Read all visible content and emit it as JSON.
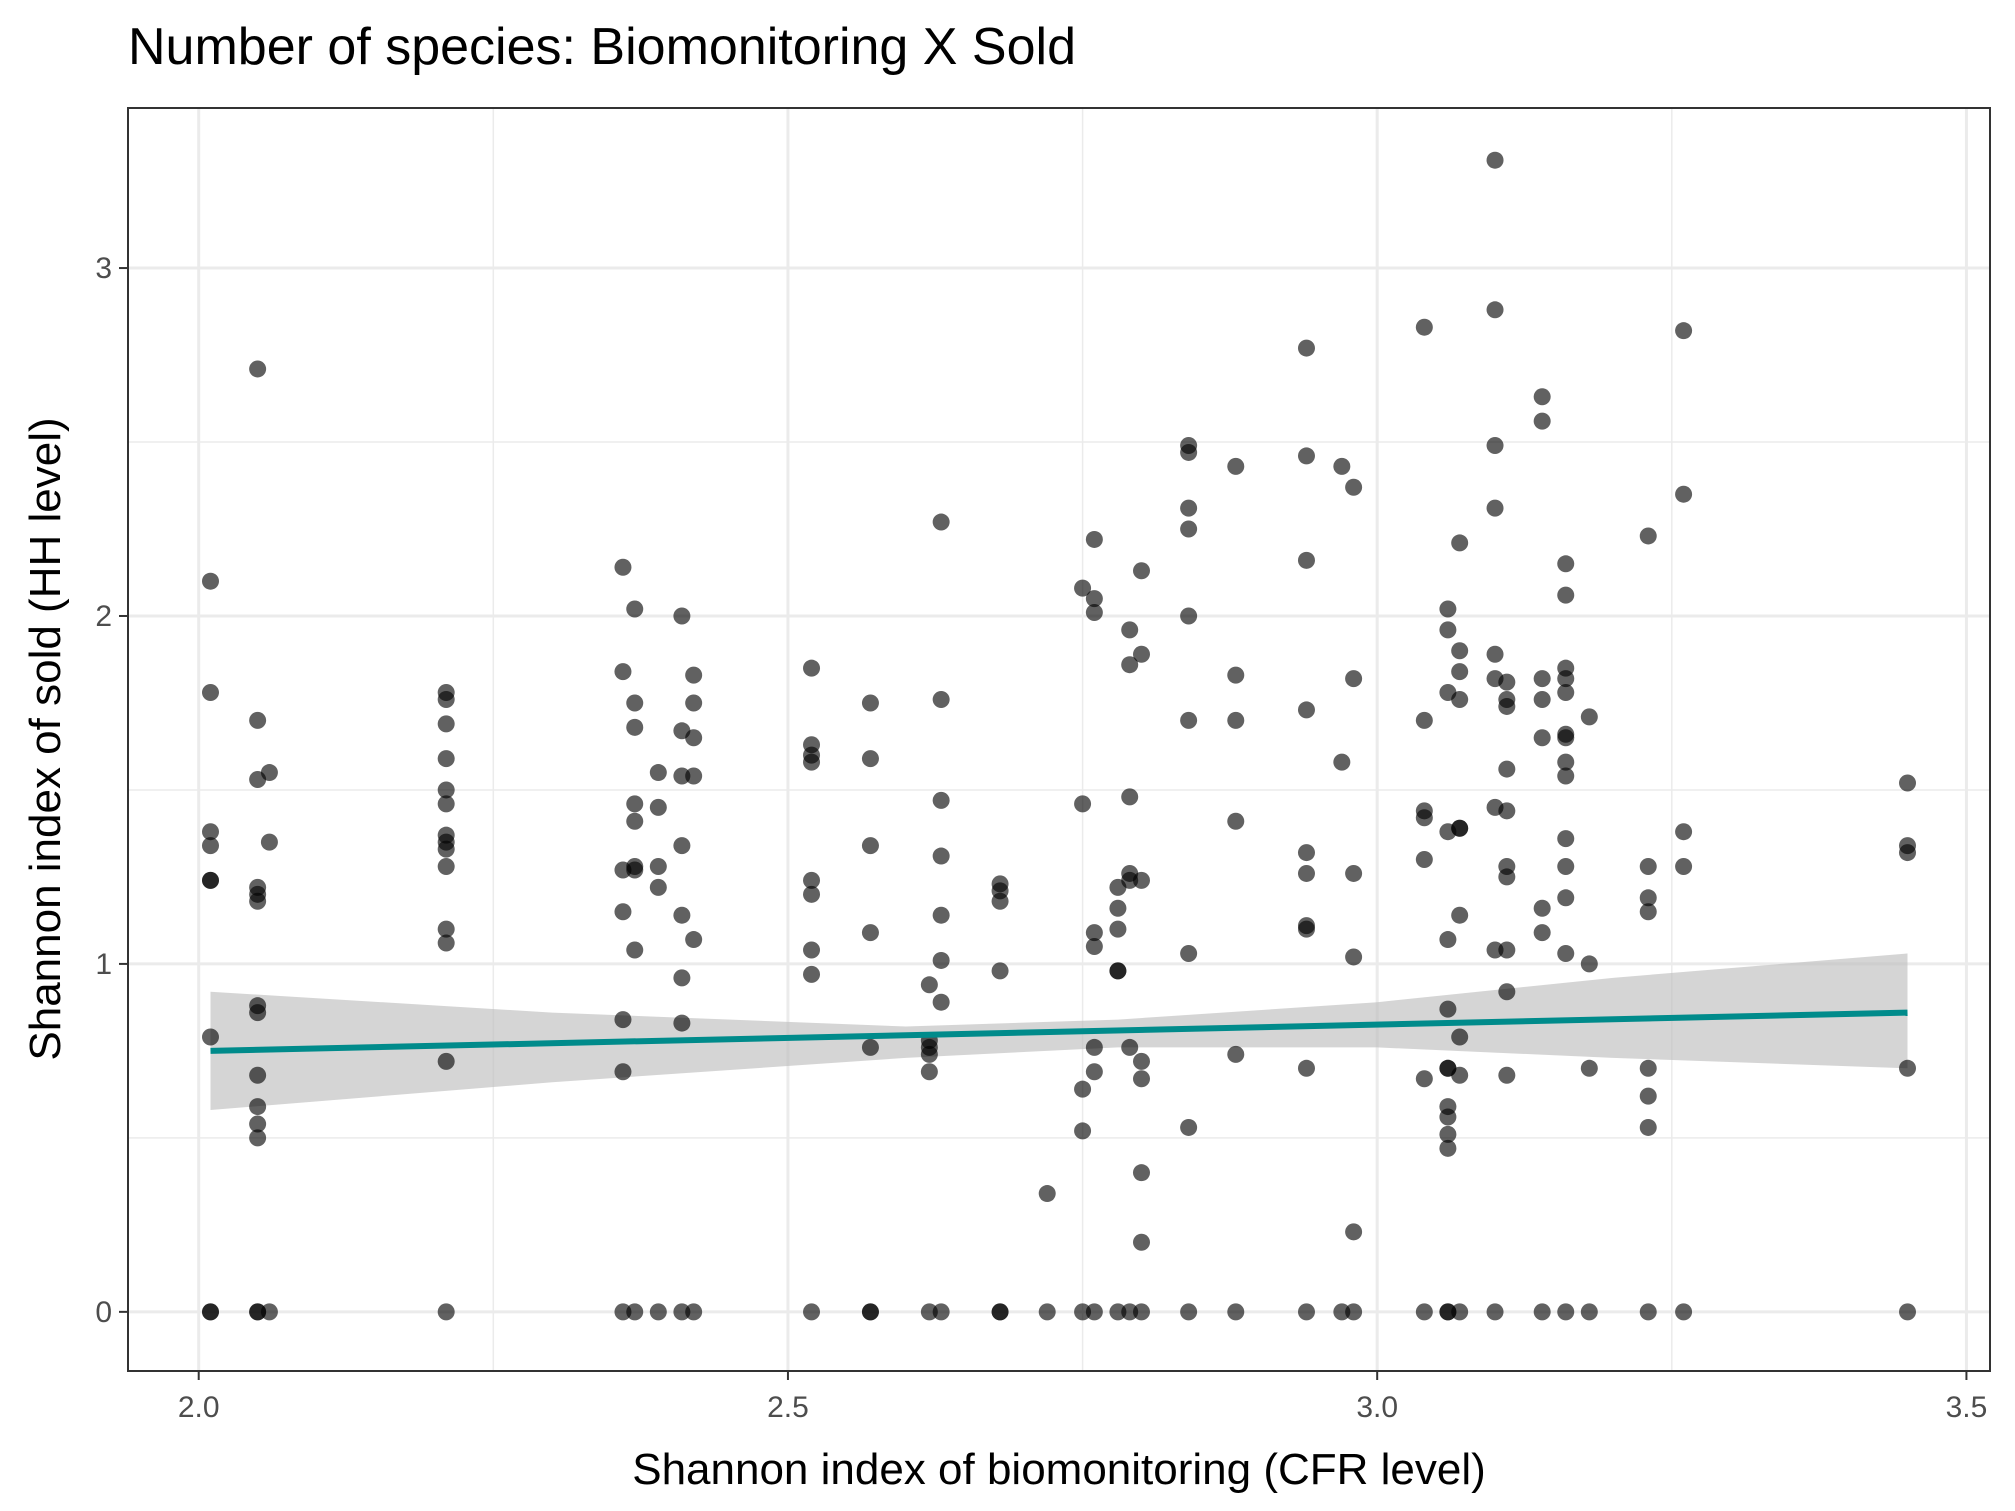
{
  "chart_data": {
    "type": "scatter",
    "title": "Number of species: Biomonitoring X Sold",
    "xlabel": "Shannon index of biomonitoring (CFR level)",
    "ylabel": "Shannon index of sold (HH level)",
    "xlim": [
      1.94,
      3.52
    ],
    "ylim": [
      -0.17,
      3.46
    ],
    "x_ticks": [
      "2.0",
      "2.5",
      "3.0",
      "3.5"
    ],
    "x_tick_values": [
      2.0,
      2.5,
      3.0,
      3.5
    ],
    "y_ticks": [
      "0",
      "1",
      "2",
      "3"
    ],
    "y_tick_values": [
      0,
      1,
      2,
      3
    ],
    "grid": true,
    "colors": {
      "points": "#000000",
      "point_opacity": 0.62,
      "trend_line": "#008b8b",
      "confidence_band": "#bfbfbf"
    },
    "trend": {
      "method": "linear fit with confidence band",
      "x": [
        2.01,
        3.45
      ],
      "y": [
        0.75,
        0.86
      ],
      "band": [
        {
          "x": 2.01,
          "lower": 0.58,
          "upper": 0.92
        },
        {
          "x": 2.3,
          "lower": 0.66,
          "upper": 0.86
        },
        {
          "x": 2.6,
          "lower": 0.73,
          "upper": 0.82
        },
        {
          "x": 2.78,
          "lower": 0.76,
          "upper": 0.84
        },
        {
          "x": 3.0,
          "lower": 0.76,
          "upper": 0.89
        },
        {
          "x": 3.2,
          "lower": 0.73,
          "upper": 0.96
        },
        {
          "x": 3.45,
          "lower": 0.7,
          "upper": 1.03
        }
      ]
    },
    "series": [
      {
        "points": [
          [
            2.01,
            2.1
          ],
          [
            2.01,
            1.78
          ],
          [
            2.01,
            1.38
          ],
          [
            2.01,
            1.34
          ],
          [
            2.01,
            1.24
          ],
          [
            2.01,
            1.24
          ],
          [
            2.01,
            0.79
          ],
          [
            2.01,
            0
          ],
          [
            2.01,
            0
          ],
          [
            2.05,
            2.71
          ],
          [
            2.05,
            1.7
          ],
          [
            2.05,
            1.53
          ],
          [
            2.06,
            1.55
          ],
          [
            2.06,
            1.35
          ],
          [
            2.05,
            1.22
          ],
          [
            2.05,
            1.2
          ],
          [
            2.05,
            1.18
          ],
          [
            2.05,
            0.88
          ],
          [
            2.05,
            0.86
          ],
          [
            2.05,
            0.68
          ],
          [
            2.05,
            0.59
          ],
          [
            2.05,
            0.54
          ],
          [
            2.05,
            0.5
          ],
          [
            2.05,
            0
          ],
          [
            2.06,
            0
          ],
          [
            2.05,
            0
          ],
          [
            2.21,
            1.78
          ],
          [
            2.21,
            1.76
          ],
          [
            2.21,
            1.69
          ],
          [
            2.21,
            1.59
          ],
          [
            2.21,
            1.5
          ],
          [
            2.21,
            1.46
          ],
          [
            2.21,
            1.37
          ],
          [
            2.21,
            1.35
          ],
          [
            2.21,
            1.33
          ],
          [
            2.21,
            1.28
          ],
          [
            2.21,
            1.1
          ],
          [
            2.21,
            1.06
          ],
          [
            2.21,
            0.72
          ],
          [
            2.21,
            0
          ],
          [
            2.36,
            2.14
          ],
          [
            2.37,
            2.02
          ],
          [
            2.36,
            1.84
          ],
          [
            2.37,
            1.75
          ],
          [
            2.37,
            1.68
          ],
          [
            2.37,
            1.46
          ],
          [
            2.37,
            1.41
          ],
          [
            2.37,
            1.28
          ],
          [
            2.36,
            1.27
          ],
          [
            2.37,
            1.27
          ],
          [
            2.36,
            1.15
          ],
          [
            2.37,
            1.04
          ],
          [
            2.36,
            0.84
          ],
          [
            2.36,
            0.69
          ],
          [
            2.36,
            0
          ],
          [
            2.37,
            0
          ],
          [
            2.39,
            1.55
          ],
          [
            2.39,
            1.45
          ],
          [
            2.39,
            1.28
          ],
          [
            2.39,
            1.22
          ],
          [
            2.39,
            0
          ],
          [
            2.41,
            2.0
          ],
          [
            2.41,
            1.67
          ],
          [
            2.41,
            1.54
          ],
          [
            2.41,
            1.34
          ],
          [
            2.41,
            1.14
          ],
          [
            2.41,
            0.96
          ],
          [
            2.41,
            0.83
          ],
          [
            2.41,
            0
          ],
          [
            2.42,
            1.83
          ],
          [
            2.42,
            1.75
          ],
          [
            2.42,
            1.65
          ],
          [
            2.42,
            1.54
          ],
          [
            2.42,
            1.07
          ],
          [
            2.42,
            0
          ],
          [
            2.52,
            1.85
          ],
          [
            2.52,
            1.63
          ],
          [
            2.52,
            1.6
          ],
          [
            2.52,
            1.58
          ],
          [
            2.52,
            1.24
          ],
          [
            2.52,
            1.2
          ],
          [
            2.52,
            1.04
          ],
          [
            2.52,
            0.97
          ],
          [
            2.52,
            0
          ],
          [
            2.57,
            1.75
          ],
          [
            2.57,
            1.59
          ],
          [
            2.57,
            1.34
          ],
          [
            2.57,
            1.09
          ],
          [
            2.57,
            0.76
          ],
          [
            2.57,
            0
          ],
          [
            2.57,
            0
          ],
          [
            2.62,
            0.94
          ],
          [
            2.62,
            0.78
          ],
          [
            2.62,
            0.76
          ],
          [
            2.62,
            0.74
          ],
          [
            2.62,
            0.69
          ],
          [
            2.62,
            0
          ],
          [
            2.63,
            2.27
          ],
          [
            2.63,
            1.76
          ],
          [
            2.63,
            1.47
          ],
          [
            2.63,
            1.31
          ],
          [
            2.63,
            1.14
          ],
          [
            2.63,
            1.01
          ],
          [
            2.63,
            0.89
          ],
          [
            2.63,
            0
          ],
          [
            2.68,
            1.23
          ],
          [
            2.68,
            1.21
          ],
          [
            2.68,
            1.18
          ],
          [
            2.68,
            0.98
          ],
          [
            2.68,
            0
          ],
          [
            2.68,
            0
          ],
          [
            2.72,
            0.34
          ],
          [
            2.72,
            0
          ],
          [
            2.75,
            2.08
          ],
          [
            2.75,
            1.46
          ],
          [
            2.75,
            0.64
          ],
          [
            2.75,
            0.52
          ],
          [
            2.76,
            2.22
          ],
          [
            2.76,
            2.05
          ],
          [
            2.76,
            2.01
          ],
          [
            2.76,
            1.09
          ],
          [
            2.76,
            1.05
          ],
          [
            2.76,
            0.76
          ],
          [
            2.76,
            0.69
          ],
          [
            2.75,
            0
          ],
          [
            2.76,
            0
          ],
          [
            2.78,
            1.22
          ],
          [
            2.78,
            1.16
          ],
          [
            2.78,
            1.1
          ],
          [
            2.78,
            0.98
          ],
          [
            2.78,
            0.98
          ],
          [
            2.78,
            0
          ],
          [
            2.79,
            1.96
          ],
          [
            2.79,
            1.86
          ],
          [
            2.79,
            1.48
          ],
          [
            2.79,
            1.26
          ],
          [
            2.79,
            1.24
          ],
          [
            2.79,
            0.76
          ],
          [
            2.79,
            0
          ],
          [
            2.8,
            2.13
          ],
          [
            2.8,
            1.89
          ],
          [
            2.8,
            1.24
          ],
          [
            2.8,
            0.72
          ],
          [
            2.8,
            0.67
          ],
          [
            2.8,
            0.4
          ],
          [
            2.8,
            0.2
          ],
          [
            2.8,
            0
          ],
          [
            2.84,
            2.49
          ],
          [
            2.84,
            2.47
          ],
          [
            2.84,
            2.31
          ],
          [
            2.84,
            2.25
          ],
          [
            2.84,
            2.0
          ],
          [
            2.84,
            1.7
          ],
          [
            2.84,
            1.03
          ],
          [
            2.84,
            0.53
          ],
          [
            2.84,
            0
          ],
          [
            2.88,
            2.43
          ],
          [
            2.88,
            1.83
          ],
          [
            2.88,
            1.7
          ],
          [
            2.88,
            1.41
          ],
          [
            2.88,
            0.74
          ],
          [
            2.88,
            0
          ],
          [
            2.94,
            2.77
          ],
          [
            2.94,
            2.46
          ],
          [
            2.94,
            2.16
          ],
          [
            2.94,
            1.73
          ],
          [
            2.94,
            1.32
          ],
          [
            2.94,
            1.26
          ],
          [
            2.94,
            1.11
          ],
          [
            2.94,
            1.1
          ],
          [
            2.94,
            0.7
          ],
          [
            2.94,
            0
          ],
          [
            2.97,
            2.43
          ],
          [
            2.97,
            1.58
          ],
          [
            2.97,
            0
          ],
          [
            2.98,
            2.37
          ],
          [
            2.98,
            1.82
          ],
          [
            2.98,
            1.26
          ],
          [
            2.98,
            1.02
          ],
          [
            2.98,
            0.23
          ],
          [
            2.98,
            0
          ],
          [
            3.04,
            2.83
          ],
          [
            3.04,
            1.7
          ],
          [
            3.04,
            1.44
          ],
          [
            3.04,
            1.42
          ],
          [
            3.04,
            1.3
          ],
          [
            3.04,
            0.67
          ],
          [
            3.04,
            0
          ],
          [
            3.06,
            2.02
          ],
          [
            3.06,
            1.96
          ],
          [
            3.06,
            1.78
          ],
          [
            3.06,
            1.38
          ],
          [
            3.06,
            1.07
          ],
          [
            3.06,
            0.87
          ],
          [
            3.06,
            0.7
          ],
          [
            3.06,
            0.7
          ],
          [
            3.06,
            0.59
          ],
          [
            3.06,
            0.56
          ],
          [
            3.06,
            0.51
          ],
          [
            3.06,
            0.47
          ],
          [
            3.06,
            0
          ],
          [
            3.06,
            0
          ],
          [
            3.07,
            2.21
          ],
          [
            3.07,
            1.9
          ],
          [
            3.07,
            1.84
          ],
          [
            3.07,
            1.76
          ],
          [
            3.07,
            1.39
          ],
          [
            3.07,
            1.39
          ],
          [
            3.07,
            1.14
          ],
          [
            3.07,
            0.79
          ],
          [
            3.07,
            0.68
          ],
          [
            3.07,
            0
          ],
          [
            3.1,
            3.31
          ],
          [
            3.1,
            2.88
          ],
          [
            3.1,
            2.49
          ],
          [
            3.1,
            2.31
          ],
          [
            3.1,
            1.89
          ],
          [
            3.1,
            1.82
          ],
          [
            3.1,
            1.45
          ],
          [
            3.1,
            1.04
          ],
          [
            3.1,
            0
          ],
          [
            3.11,
            1.81
          ],
          [
            3.11,
            1.76
          ],
          [
            3.11,
            1.74
          ],
          [
            3.11,
            1.56
          ],
          [
            3.11,
            1.44
          ],
          [
            3.11,
            1.28
          ],
          [
            3.11,
            1.25
          ],
          [
            3.11,
            1.04
          ],
          [
            3.11,
            0.92
          ],
          [
            3.11,
            0.68
          ],
          [
            3.14,
            2.63
          ],
          [
            3.14,
            2.56
          ],
          [
            3.14,
            1.82
          ],
          [
            3.14,
            1.76
          ],
          [
            3.14,
            1.65
          ],
          [
            3.14,
            1.16
          ],
          [
            3.14,
            1.09
          ],
          [
            3.14,
            0
          ],
          [
            3.16,
            2.15
          ],
          [
            3.16,
            2.06
          ],
          [
            3.16,
            1.85
          ],
          [
            3.16,
            1.82
          ],
          [
            3.16,
            1.78
          ],
          [
            3.16,
            1.66
          ],
          [
            3.16,
            1.65
          ],
          [
            3.16,
            1.58
          ],
          [
            3.16,
            1.54
          ],
          [
            3.16,
            1.36
          ],
          [
            3.16,
            1.28
          ],
          [
            3.16,
            1.19
          ],
          [
            3.16,
            1.03
          ],
          [
            3.16,
            0
          ],
          [
            3.18,
            1.71
          ],
          [
            3.18,
            1.0
          ],
          [
            3.18,
            0.7
          ],
          [
            3.18,
            0
          ],
          [
            3.23,
            2.23
          ],
          [
            3.23,
            1.28
          ],
          [
            3.23,
            1.19
          ],
          [
            3.23,
            1.15
          ],
          [
            3.23,
            0.7
          ],
          [
            3.23,
            0.62
          ],
          [
            3.23,
            0.53
          ],
          [
            3.23,
            0
          ],
          [
            3.26,
            2.82
          ],
          [
            3.26,
            2.35
          ],
          [
            3.26,
            1.38
          ],
          [
            3.26,
            1.28
          ],
          [
            3.26,
            0
          ],
          [
            3.45,
            1.52
          ],
          [
            3.45,
            1.34
          ],
          [
            3.45,
            1.32
          ],
          [
            3.45,
            0.7
          ],
          [
            3.45,
            0
          ]
        ]
      }
    ]
  }
}
